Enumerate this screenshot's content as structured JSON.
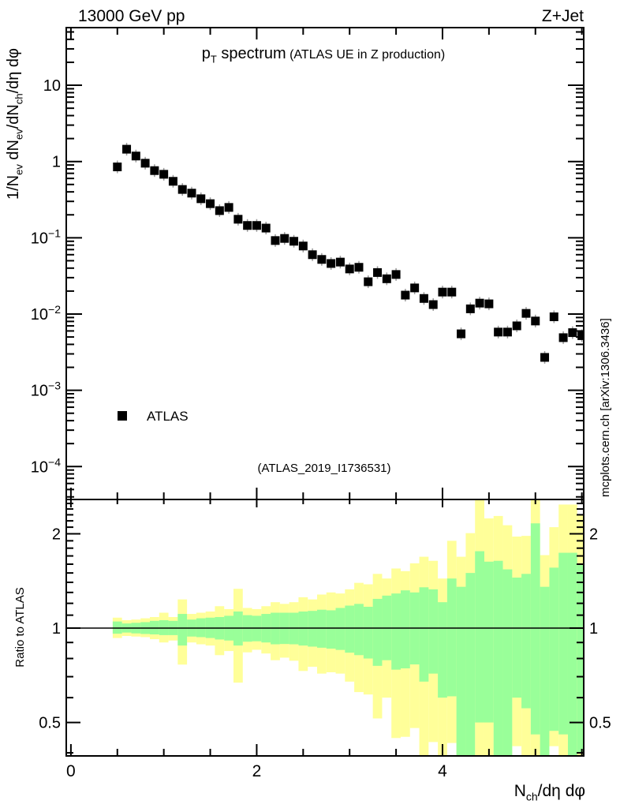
{
  "header": {
    "left": "13000 GeV pp",
    "right": "Z+Jet"
  },
  "watermark": "mcplots.cern.ch [arXiv:1306.3436]",
  "annotation": "(ATLAS_2019_I1736531)",
  "legend": {
    "label": "ATLAS",
    "marker": "filled-square",
    "marker_color": "#000000"
  },
  "colors": {
    "frame": "#000000",
    "marker": "#000000",
    "errorbar": "#999999",
    "band_outer": "#ffff99",
    "band_inner": "#99ff99",
    "gray_text": "#a9a9a9",
    "watermark_text": "#8f8f8f",
    "background": "#ffffff"
  },
  "title_parts": [
    {
      "t": "p",
      "s": "n"
    },
    {
      "t": "T",
      "s": "b"
    },
    {
      "t": " spectrum",
      "s": "n"
    },
    {
      "t": " (ATLAS UE in Z production)",
      "s": "s"
    }
  ],
  "top_panel": {
    "ylabel_parts": [
      {
        "t": "1/N",
        "s": "n"
      },
      {
        "t": "ev",
        "s": "b"
      },
      {
        "t": " dN",
        "s": "n"
      },
      {
        "t": "ev",
        "s": "b"
      },
      {
        "t": "/dN",
        "s": "n"
      },
      {
        "t": "ch",
        "s": "b"
      },
      {
        "t": "/dη dφ",
        "s": "n"
      }
    ],
    "yticks": [
      {
        "v": 10,
        "base": "10",
        "exp": ""
      },
      {
        "v": 1,
        "base": "1",
        "exp": ""
      },
      {
        "v": 0.1,
        "base": "10",
        "exp": "−1"
      },
      {
        "v": 0.01,
        "base": "10",
        "exp": "−2"
      },
      {
        "v": 0.001,
        "base": "10",
        "exp": "−3"
      },
      {
        "v": 0.0001,
        "base": "10",
        "exp": "−4"
      }
    ]
  },
  "ratio_panel": {
    "ylabel": "Ratio to ATLAS",
    "yticks": [
      {
        "v": 2,
        "label": "2"
      },
      {
        "v": 1,
        "label": "1"
      },
      {
        "v": 0.5,
        "label": "0.5"
      }
    ],
    "yticks_minor": [
      0.4,
      0.6,
      0.7,
      0.8,
      0.9,
      1.1,
      1.2,
      1.3,
      1.4,
      1.5,
      1.6,
      1.7,
      1.8,
      1.9,
      2.1,
      2.2,
      2.3,
      2.4,
      2.5
    ]
  },
  "x_axis": {
    "label_parts": [
      {
        "t": "N",
        "s": "n"
      },
      {
        "t": "ch",
        "s": "b"
      },
      {
        "t": "/dη dφ",
        "s": "n"
      }
    ],
    "ticks": [
      {
        "v": 0,
        "label": "0"
      },
      {
        "v": 2,
        "label": "2"
      },
      {
        "v": 4,
        "label": "4"
      }
    ],
    "minor_step": 0.5
  },
  "chart_data": {
    "type": "scatter",
    "title": "pT spectrum (ATLAS UE in Z production)",
    "xlabel": "Nch/dη dφ",
    "ylabel_top": "1/Nev dNev/dNch/dη dφ",
    "ylabel_ratio": "Ratio to ATLAS",
    "xlim": [
      -0.05,
      5.52
    ],
    "ylim_top": [
      3.7e-05,
      57
    ],
    "ylim_ratio": [
      0.391,
      2.574
    ],
    "log_y_top": true,
    "log_y_ratio": true,
    "bin_width": 0.1,
    "x": [
      0.5,
      0.6,
      0.7,
      0.8,
      0.9,
      1.0,
      1.1,
      1.2,
      1.3,
      1.4,
      1.5,
      1.6,
      1.7,
      1.8,
      1.9,
      2.0,
      2.1,
      2.2,
      2.3,
      2.4,
      2.5,
      2.6,
      2.7,
      2.8,
      2.9,
      3.0,
      3.1,
      3.2,
      3.3,
      3.4,
      3.5,
      3.6,
      3.7,
      3.8,
      3.9,
      4.0,
      4.1,
      4.2,
      4.3,
      4.4,
      4.5,
      4.6,
      4.7,
      4.8,
      4.9,
      5.0,
      5.1,
      5.2,
      5.3,
      5.4,
      5.5
    ],
    "series": [
      {
        "name": "ATLAS",
        "marker": "filled-square",
        "color": "#000000",
        "values": [
          0.85,
          1.45,
          1.18,
          0.95,
          0.76,
          0.68,
          0.55,
          0.43,
          0.385,
          0.325,
          0.28,
          0.227,
          0.25,
          0.175,
          0.145,
          0.145,
          0.134,
          0.092,
          0.098,
          0.09,
          0.078,
          0.06,
          0.052,
          0.046,
          0.048,
          0.039,
          0.041,
          0.0265,
          0.035,
          0.029,
          0.033,
          0.0177,
          0.022,
          0.016,
          0.0133,
          0.0194,
          0.0194,
          0.0055,
          0.0117,
          0.0139,
          0.0136,
          0.0058,
          0.0058,
          0.007,
          0.0102,
          0.0081,
          0.0027,
          0.0092,
          0.0049,
          0.0057,
          0.0052
        ]
      }
    ],
    "ratio_bands": {
      "center": 1,
      "inner_color": "#99ff99",
      "outer_color": "#ffff99",
      "inner_hi": [
        1.05,
        1.035,
        1.04,
        1.045,
        1.055,
        1.06,
        1.055,
        1.11,
        1.065,
        1.075,
        1.08,
        1.085,
        1.095,
        1.13,
        1.1,
        1.095,
        1.11,
        1.12,
        1.12,
        1.12,
        1.13,
        1.135,
        1.145,
        1.14,
        1.16,
        1.18,
        1.195,
        1.17,
        1.24,
        1.27,
        1.29,
        1.32,
        1.3,
        1.35,
        1.33,
        1.21,
        1.44,
        1.355,
        1.5,
        1.76,
        1.63,
        1.64,
        1.54,
        1.45,
        1.49,
        2.16,
        1.355,
        1.56,
        1.74,
        1.74,
        1.6
      ],
      "inner_lo": [
        0.96,
        0.968,
        0.962,
        0.958,
        0.955,
        0.95,
        0.95,
        0.88,
        0.94,
        0.936,
        0.93,
        0.92,
        0.913,
        0.88,
        0.905,
        0.908,
        0.9,
        0.888,
        0.89,
        0.888,
        0.88,
        0.873,
        0.866,
        0.86,
        0.852,
        0.835,
        0.82,
        0.8,
        0.758,
        0.79,
        0.737,
        0.744,
        0.766,
        0.675,
        0.716,
        0.6,
        0.606,
        0.35,
        0.36,
        0.5,
        0.5,
        0.35,
        0.35,
        0.6,
        0.555,
        0.458,
        0.35,
        0.47,
        0.458,
        0.35,
        0.4
      ],
      "outer_hi": [
        1.08,
        1.06,
        1.065,
        1.075,
        1.085,
        1.12,
        1.085,
        1.235,
        1.11,
        1.12,
        1.13,
        1.175,
        1.15,
        1.335,
        1.16,
        1.15,
        1.175,
        1.21,
        1.195,
        1.21,
        1.255,
        1.235,
        1.28,
        1.3,
        1.29,
        1.33,
        1.395,
        1.38,
        1.49,
        1.44,
        1.55,
        1.52,
        1.61,
        1.69,
        1.64,
        1.44,
        1.9,
        1.69,
        2.01,
        2.6,
        2.24,
        2.28,
        2.13,
        1.96,
        1.97,
        2.6,
        1.71,
        2.1,
        2.48,
        2.48,
        2.3
      ],
      "outer_lo": [
        0.93,
        0.944,
        0.94,
        0.936,
        0.922,
        0.9,
        0.913,
        0.765,
        0.9,
        0.888,
        0.88,
        0.82,
        0.845,
        0.67,
        0.837,
        0.853,
        0.83,
        0.79,
        0.805,
        0.787,
        0.73,
        0.753,
        0.716,
        0.723,
        0.716,
        0.675,
        0.625,
        0.614,
        0.515,
        0.6,
        0.446,
        0.45,
        0.48,
        0.35,
        0.433,
        0.35,
        0.43,
        0.33,
        0.33,
        0.35,
        0.35,
        0.33,
        0.33,
        0.42,
        0.35,
        0.35,
        0.33,
        0.42,
        0.35,
        0.33,
        0.33
      ]
    }
  }
}
